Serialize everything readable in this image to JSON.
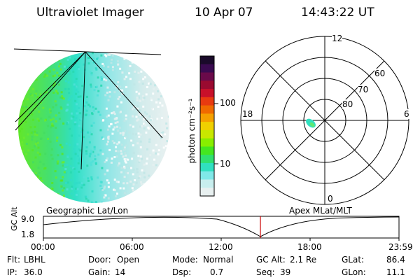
{
  "header": {
    "title": "Ultraviolet Imager",
    "date": "10 Apr 07",
    "time": "14:43:22 UT"
  },
  "colorbar": {
    "unit_label": "photon cm⁻²s⁻¹",
    "ticks": [
      "100",
      "10"
    ],
    "colors": [
      "#1a0a2a",
      "#3a0a50",
      "#6a0a4a",
      "#9a0a30",
      "#c8102a",
      "#e83a10",
      "#f06a00",
      "#f5a000",
      "#f0d000",
      "#c8e800",
      "#88ee00",
      "#44e620",
      "#30e070",
      "#30e0c0",
      "#80e8e8",
      "#c8eeee",
      "#e8f0f0"
    ]
  },
  "polar": {
    "labels": {
      "top": "12",
      "bottom": "0",
      "left": "18",
      "right": "6"
    },
    "rings": [
      "60",
      "70",
      "80"
    ]
  },
  "altitude": {
    "left_title": "Geographic Lat/Lon",
    "right_title": "Apex MLat/MLT",
    "axis_label": "GC Alt",
    "y_ticks": [
      "9.0",
      "1.8"
    ],
    "x_ticks": [
      "00:00",
      "06:00",
      "12:00",
      "18:00",
      "23:59"
    ]
  },
  "info": {
    "row1": [
      {
        "label": "Flt:",
        "value": "LBHL"
      },
      {
        "label": "Door:",
        "value": "Open"
      },
      {
        "label": "Mode:",
        "value": "Normal"
      },
      {
        "label": "GC Alt:",
        "value": "2.1 Re"
      },
      {
        "label": "GLat:",
        "value": "86.4"
      }
    ],
    "row2": [
      {
        "label": "IP:",
        "value": "36.0"
      },
      {
        "label": "Gain:",
        "value": "14"
      },
      {
        "label": "Dsp:",
        "value": "0.7"
      },
      {
        "label": "Seq:",
        "value": "39"
      },
      {
        "label": "GLon:",
        "value": "11.1"
      }
    ]
  }
}
